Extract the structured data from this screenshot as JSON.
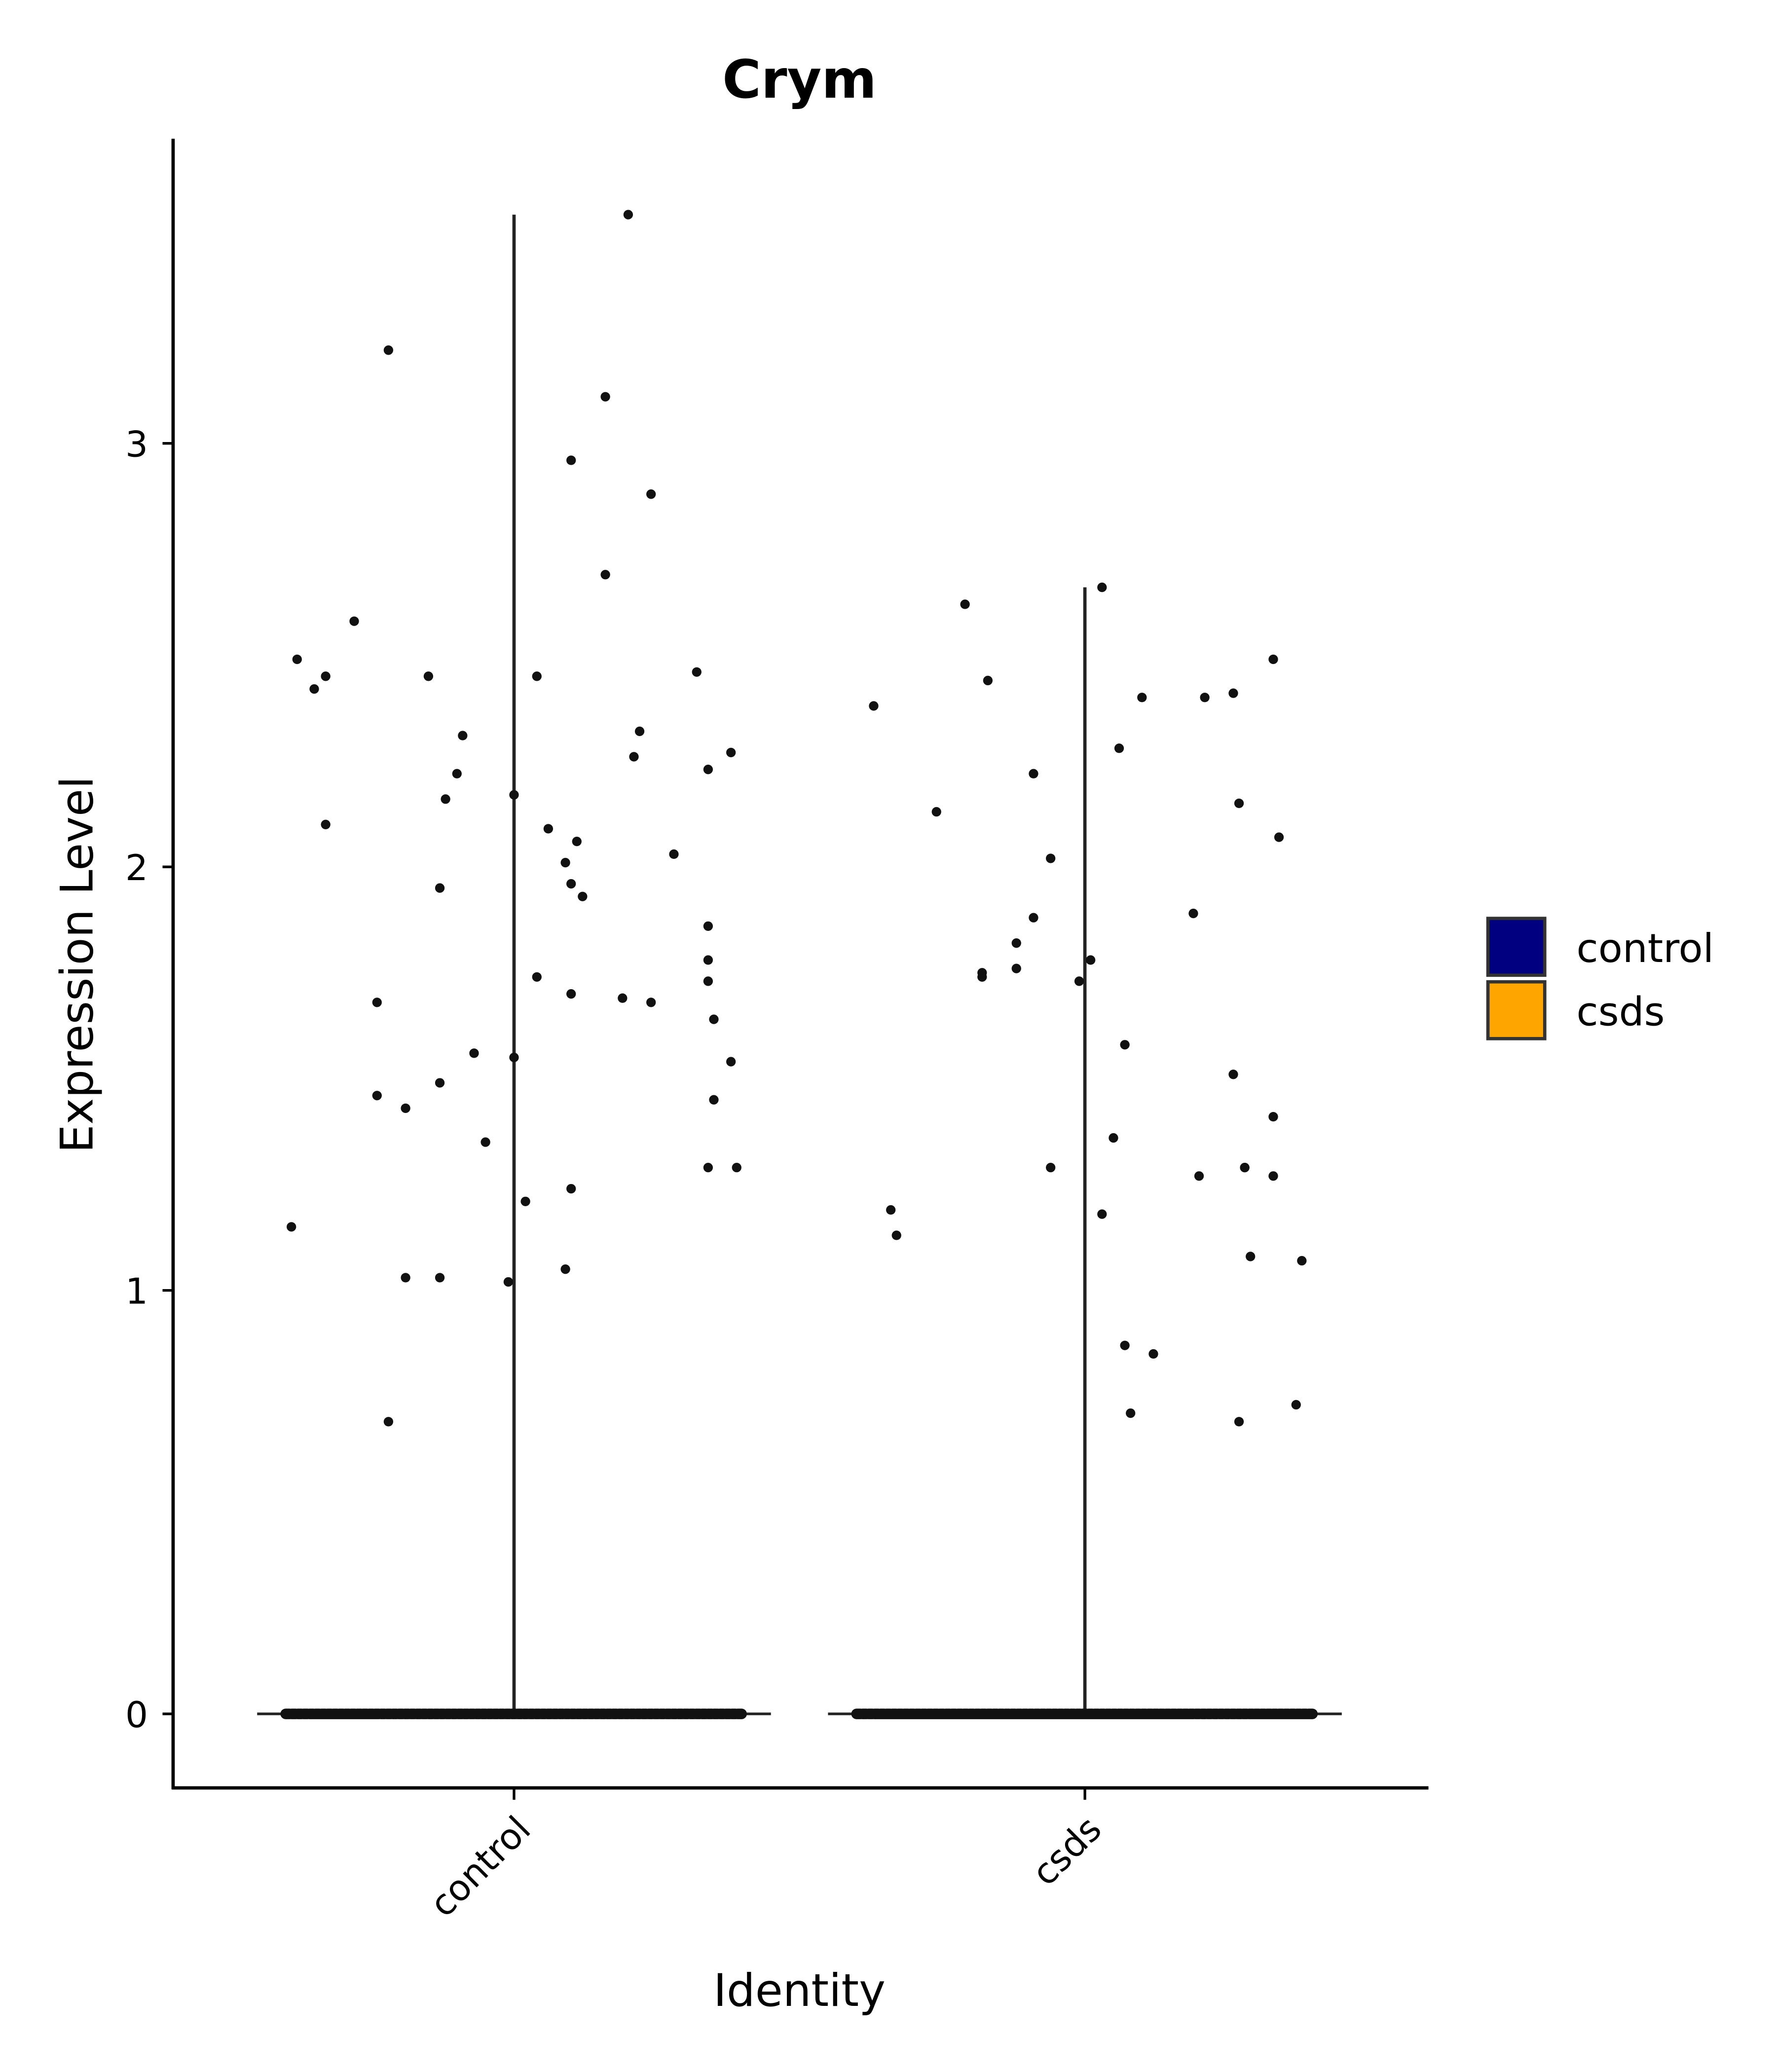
{
  "chart_data": {
    "type": "violin",
    "title": "Crym",
    "xlabel": "Identity",
    "ylabel": "Expression Level",
    "categories": [
      "control",
      "csds"
    ],
    "ylim": [
      -0.175,
      3.72
    ],
    "yticks": [
      0,
      1,
      2,
      3
    ],
    "grid": false,
    "legend": {
      "position": "right",
      "entries": [
        {
          "label": "control",
          "color": "#000080"
        },
        {
          "label": "csds",
          "color": "#FFA500"
        }
      ]
    },
    "violin_max": [
      3.54,
      2.66
    ],
    "zero_band_jitter": [
      -0.4,
      0.4
    ],
    "violin_halfwidth": 0.45,
    "series": [
      {
        "name": "control",
        "category_index": 0,
        "zero_count_note": "many cells at 0",
        "points": [
          [
            -0.38,
            2.49
          ],
          [
            -0.35,
            2.42
          ],
          [
            -0.33,
            2.45
          ],
          [
            -0.33,
            2.1
          ],
          [
            -0.28,
            2.58
          ],
          [
            -0.22,
            3.22
          ],
          [
            -0.39,
            1.15
          ],
          [
            -0.24,
            1.68
          ],
          [
            -0.24,
            1.46
          ],
          [
            -0.19,
            1.43
          ],
          [
            -0.22,
            0.69
          ],
          [
            -0.19,
            1.03
          ],
          [
            -0.13,
            1.03
          ],
          [
            -0.15,
            2.45
          ],
          [
            -0.09,
            2.31
          ],
          [
            -0.1,
            2.22
          ],
          [
            -0.12,
            2.16
          ],
          [
            -0.13,
            1.95
          ],
          [
            -0.13,
            1.49
          ],
          [
            -0.07,
            1.56
          ],
          [
            -0.05,
            1.35
          ],
          [
            -0.01,
            1.02
          ],
          [
            0.0,
            2.17
          ],
          [
            0.0,
            1.55
          ],
          [
            0.02,
            1.21
          ],
          [
            0.04,
            2.45
          ],
          [
            0.04,
            1.74
          ],
          [
            0.06,
            2.09
          ],
          [
            0.09,
            2.01
          ],
          [
            0.1,
            1.96
          ],
          [
            0.12,
            1.93
          ],
          [
            0.11,
            2.06
          ],
          [
            0.1,
            1.7
          ],
          [
            0.1,
            1.24
          ],
          [
            0.09,
            1.05
          ],
          [
            0.1,
            2.96
          ],
          [
            0.16,
            2.69
          ],
          [
            0.16,
            3.11
          ],
          [
            0.2,
            3.54
          ],
          [
            0.22,
            2.32
          ],
          [
            0.21,
            2.26
          ],
          [
            0.24,
            2.88
          ],
          [
            0.19,
            1.69
          ],
          [
            0.24,
            1.68
          ],
          [
            0.28,
            2.03
          ],
          [
            0.32,
            2.46
          ],
          [
            0.34,
            2.23
          ],
          [
            0.38,
            2.27
          ],
          [
            0.34,
            1.86
          ],
          [
            0.34,
            1.78
          ],
          [
            0.34,
            1.73
          ],
          [
            0.35,
            1.64
          ],
          [
            0.38,
            1.54
          ],
          [
            0.35,
            1.45
          ],
          [
            0.34,
            1.29
          ],
          [
            0.39,
            1.29
          ]
        ]
      },
      {
        "name": "csds",
        "category_index": 1,
        "points": [
          [
            -0.37,
            2.38
          ],
          [
            -0.34,
            1.19
          ],
          [
            -0.33,
            1.13
          ],
          [
            -0.26,
            2.13
          ],
          [
            -0.21,
            2.62
          ],
          [
            -0.17,
            2.44
          ],
          [
            -0.18,
            1.74
          ],
          [
            -0.18,
            1.75
          ],
          [
            -0.12,
            1.82
          ],
          [
            -0.12,
            1.76
          ],
          [
            -0.09,
            2.22
          ],
          [
            -0.09,
            1.88
          ],
          [
            -0.06,
            2.02
          ],
          [
            -0.06,
            1.29
          ],
          [
            -0.01,
            1.73
          ],
          [
            0.01,
            1.78
          ],
          [
            0.03,
            2.66
          ],
          [
            0.06,
            2.28
          ],
          [
            0.07,
            1.58
          ],
          [
            0.05,
            1.36
          ],
          [
            0.03,
            1.18
          ],
          [
            0.07,
            0.87
          ],
          [
            0.08,
            0.71
          ],
          [
            0.12,
            0.85
          ],
          [
            0.1,
            2.4
          ],
          [
            0.19,
            1.89
          ],
          [
            0.2,
            1.27
          ],
          [
            0.21,
            2.4
          ],
          [
            0.26,
            2.41
          ],
          [
            0.27,
            2.15
          ],
          [
            0.26,
            1.51
          ],
          [
            0.28,
            1.29
          ],
          [
            0.28,
            1.29
          ],
          [
            0.29,
            1.08
          ],
          [
            0.27,
            0.69
          ],
          [
            0.33,
            2.49
          ],
          [
            0.33,
            1.27
          ],
          [
            0.34,
            2.07
          ],
          [
            0.33,
            1.41
          ],
          [
            0.37,
            0.73
          ],
          [
            0.38,
            1.07
          ]
        ]
      }
    ]
  }
}
